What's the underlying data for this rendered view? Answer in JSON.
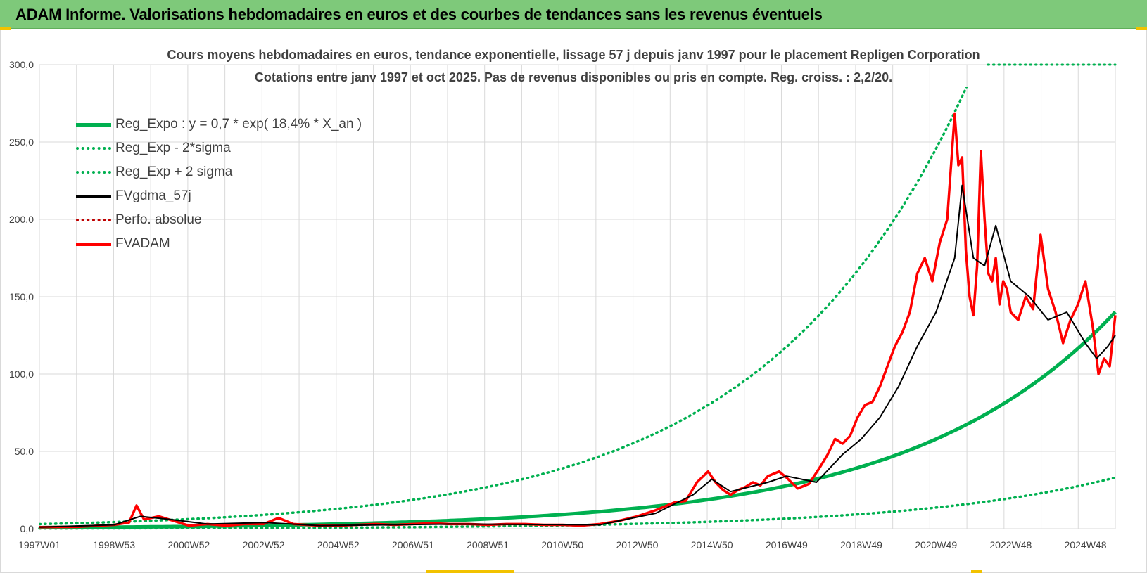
{
  "header": {
    "title": "ADAM Informe. Valorisations hebdomadaires en euros et des courbes de tendances sans les revenus éventuels"
  },
  "colors": {
    "header_bg": "#7ec97a",
    "reg_green": "#00b050",
    "adam_red": "#ff0000",
    "ma_black": "#000000",
    "grid": "#d9d9d9",
    "text": "#404040"
  },
  "chart_data": {
    "type": "line",
    "title": "Cours moyens hebdomadaires en euros, tendance exponentielle, lissage 57 j depuis janv 1997 pour le placement Repligen Corporation",
    "subtitle": "Cotations entre janv 1997 et oct 2025. Pas de revenus disponibles ou pris en compte. Reg. croiss. : 2,2/20.",
    "xlabel": "",
    "ylabel": "",
    "x_start_year": 1997.0,
    "x_end_year": 2025.8,
    "ylim": [
      0,
      300
    ],
    "y_ticks": [
      "0,0",
      "50,0",
      "100,0",
      "150,0",
      "200,0",
      "250,0",
      "300,0"
    ],
    "x_ticks": [
      "1997W01",
      "1998W53",
      "2000W52",
      "2002W52",
      "2004W52",
      "2006W51",
      "2008W51",
      "2010W50",
      "2012W50",
      "2014W50",
      "2016W49",
      "2018W49",
      "2020W49",
      "2022W48",
      "2024W48"
    ],
    "grid": true,
    "legend_position": "top-left",
    "legend": [
      {
        "label": "Reg_Expo : y = 0,7 * exp( 18,4% *  X_an )",
        "style": "solid-thick",
        "color": "#00b050"
      },
      {
        "label": "Reg_Exp - 2*sigma",
        "style": "dotted",
        "color": "#00b050"
      },
      {
        "label": "Reg_Exp + 2 sigma",
        "style": "dotted",
        "color": "#00b050"
      },
      {
        "label": "FVgdma_57j",
        "style": "solid",
        "color": "#000000"
      },
      {
        "label": "Perfo. absolue",
        "style": "dotted",
        "color": "#c00000"
      },
      {
        "label": "FVADAM",
        "style": "solid-thick",
        "color": "#ff0000"
      }
    ],
    "regression": {
      "a": 0.7,
      "rate": 0.184,
      "lower_factor": 0.236,
      "upper_factor": 4.24
    },
    "series": [
      {
        "name": "FVADAM",
        "x": [
          1997.0,
          1998.0,
          1999.0,
          1999.4,
          1999.6,
          1999.8,
          2000.2,
          2000.6,
          2001.0,
          2001.5,
          2002.0,
          2002.5,
          2003.0,
          2003.4,
          2003.8,
          2004.5,
          2005.0,
          2005.5,
          2006.0,
          2006.5,
          2007.0,
          2007.5,
          2008.0,
          2008.5,
          2009.0,
          2009.5,
          2010.0,
          2010.5,
          2011.0,
          2011.5,
          2012.0,
          2012.5,
          2013.0,
          2013.5,
          2014.0,
          2014.3,
          2014.6,
          2014.9,
          2015.1,
          2015.3,
          2015.5,
          2015.7,
          2015.9,
          2016.1,
          2016.3,
          2016.5,
          2016.8,
          2017.0,
          2017.3,
          2017.6,
          2017.9,
          2018.1,
          2018.3,
          2018.5,
          2018.7,
          2018.9,
          2019.1,
          2019.3,
          2019.5,
          2019.7,
          2019.9,
          2020.1,
          2020.3,
          2020.5,
          2020.7,
          2020.9,
          2021.1,
          2021.3,
          2021.5,
          2021.6,
          2021.7,
          2021.8,
          2021.9,
          2022.0,
          2022.1,
          2022.2,
          2022.3,
          2022.4,
          2022.5,
          2022.6,
          2022.7,
          2022.8,
          2022.9,
          2023.0,
          2023.2,
          2023.4,
          2023.6,
          2023.8,
          2024.0,
          2024.2,
          2024.4,
          2024.6,
          2024.8,
          2025.0,
          2025.2,
          2025.35,
          2025.5,
          2025.65,
          2025.8
        ],
        "values": [
          1.0,
          1.2,
          2.5,
          4,
          15,
          6,
          8,
          5,
          2,
          3,
          2,
          3,
          3,
          7,
          3,
          2,
          2,
          2.5,
          3,
          2.5,
          3,
          3.5,
          3,
          3,
          2.5,
          3,
          3,
          2.5,
          2.5,
          2,
          3,
          5,
          8,
          12,
          17,
          18,
          30,
          37,
          30,
          25,
          22,
          25,
          27,
          30,
          28,
          34,
          37,
          33,
          26,
          29,
          40,
          48,
          58,
          55,
          60,
          72,
          80,
          82,
          92,
          105,
          118,
          127,
          140,
          165,
          175,
          160,
          185,
          200,
          268,
          235,
          240,
          180,
          150,
          138,
          170,
          244,
          200,
          165,
          160,
          175,
          145,
          160,
          155,
          140,
          135,
          150,
          142,
          190,
          155,
          140,
          120,
          135,
          145,
          160,
          130,
          100,
          110,
          105,
          138
        ]
      },
      {
        "name": "FVgdma_57j",
        "x": [
          1997.0,
          1999.0,
          1999.7,
          2000.5,
          2001.5,
          2003.0,
          2004.5,
          2008.0,
          2012.0,
          2013.5,
          2014.5,
          2015.0,
          2015.5,
          2016.5,
          2017.0,
          2017.8,
          2018.5,
          2019.0,
          2019.5,
          2020.0,
          2020.5,
          2021.0,
          2021.5,
          2021.7,
          2022.0,
          2022.3,
          2022.6,
          2023.0,
          2023.5,
          2024.0,
          2024.5,
          2025.0,
          2025.3,
          2025.6,
          2025.8
        ],
        "values": [
          1.0,
          2.5,
          8,
          6,
          3,
          4,
          2,
          3,
          2.5,
          10,
          22,
          32,
          24,
          30,
          34,
          30,
          48,
          58,
          72,
          92,
          118,
          140,
          175,
          222,
          175,
          170,
          196,
          160,
          150,
          135,
          140,
          120,
          110,
          118,
          125
        ]
      }
    ]
  }
}
